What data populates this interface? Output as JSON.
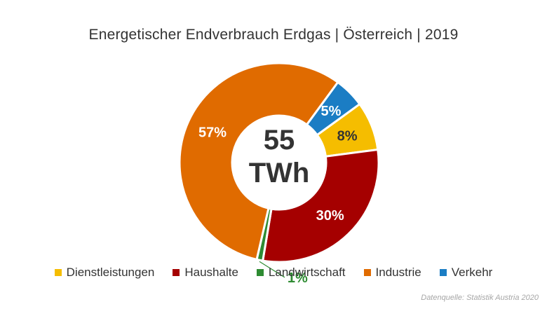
{
  "title": "Energetischer Endverbrauch Erdgas | Österreich | 2019",
  "center_label": {
    "line1": "55",
    "line2": "TWh"
  },
  "source": "Datenquelle: Statistik Austria 2020",
  "chart_data": {
    "type": "pie",
    "variant": "donut",
    "title": "Energetischer Endverbrauch Erdgas | Österreich | 2019",
    "total_label": "55 TWh",
    "legend_position": "bottom",
    "series": [
      {
        "name": "Dienstleistungen",
        "value": 8,
        "label": "8%",
        "color": "#F5BD00"
      },
      {
        "name": "Haushalte",
        "value": 30,
        "label": "30%",
        "color": "#A50000"
      },
      {
        "name": "Landwirtschaft",
        "value": 1,
        "label": "1%",
        "color": "#2E8B32"
      },
      {
        "name": "Industrie",
        "value": 57,
        "label": "57%",
        "color": "#E06B00"
      },
      {
        "name": "Verkehr",
        "value": 5,
        "label": "5%",
        "color": "#1B7DC4"
      }
    ]
  }
}
